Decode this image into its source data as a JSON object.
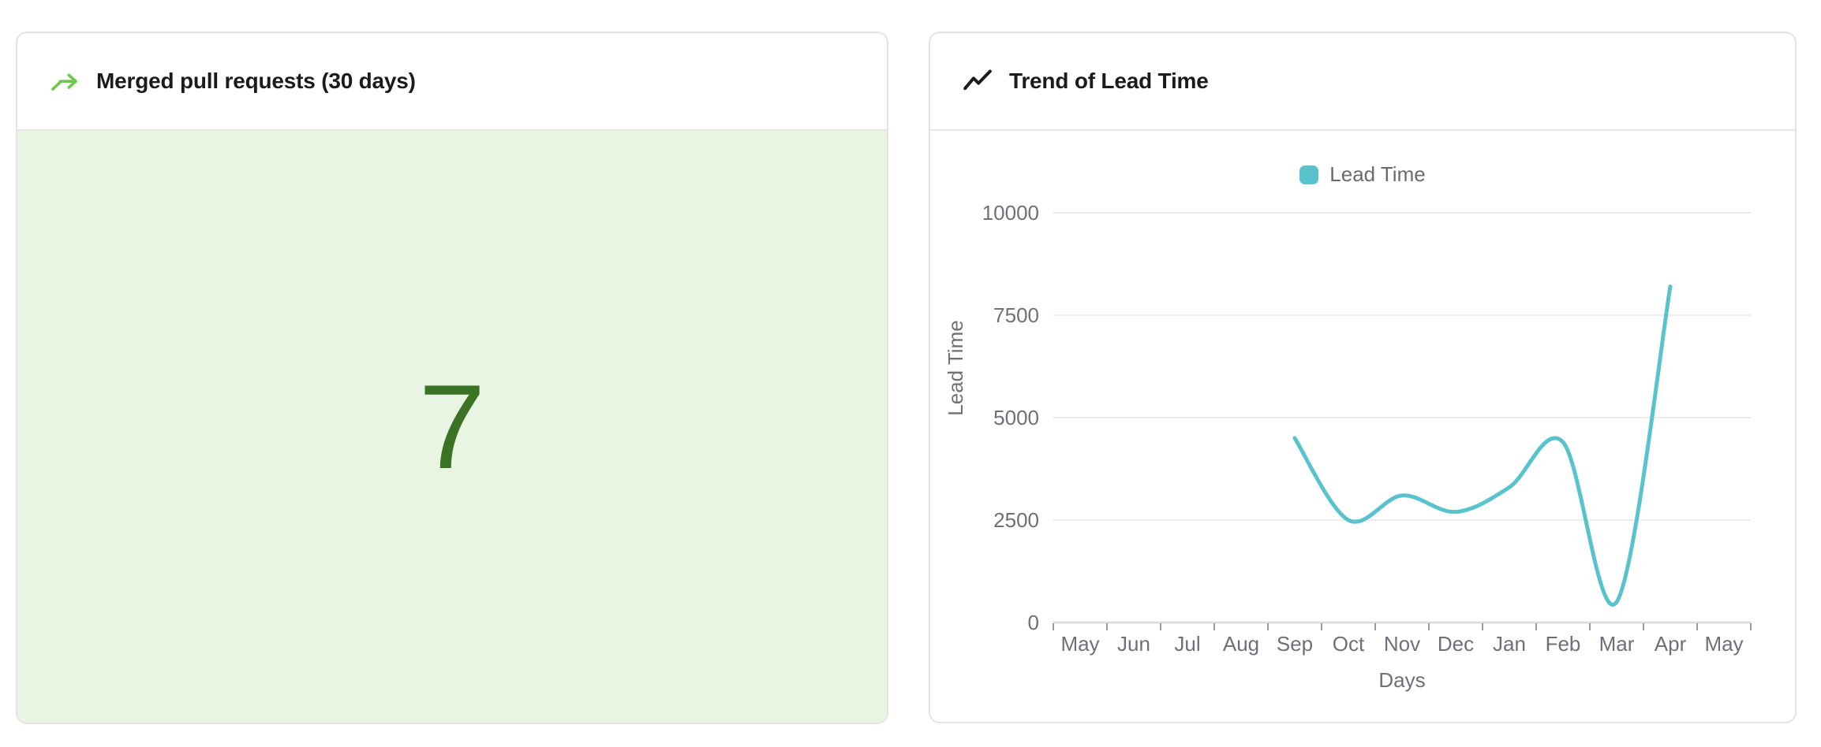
{
  "left_card": {
    "title": "Merged pull requests (30 days)",
    "value": "7",
    "icon": "merge-arrow-icon",
    "icon_color": "#6ec850",
    "value_color": "#3a7323",
    "body_bg": "#e8f5e3"
  },
  "right_card": {
    "title": "Trend of Lead Time",
    "icon": "trend-line-icon",
    "icon_color": "#1b1b1f"
  },
  "chart_data": {
    "type": "line",
    "title": "Trend of Lead Time",
    "categories": [
      "May",
      "Jun",
      "Jul",
      "Aug",
      "Sep",
      "Oct",
      "Nov",
      "Dec",
      "Jan",
      "Feb",
      "Mar",
      "Apr",
      "May"
    ],
    "series": [
      {
        "name": "Lead Time",
        "color": "#58c3cd",
        "values": [
          null,
          null,
          null,
          null,
          4500,
          2500,
          3100,
          2700,
          3300,
          4400,
          500,
          8200,
          null
        ]
      }
    ],
    "xlabel": "Days",
    "ylabel": "Lead Time",
    "ylim": [
      0,
      10000
    ],
    "yticks": [
      0,
      2500,
      5000,
      7500,
      10000
    ],
    "legend_position": "top-center",
    "grid": true,
    "smooth": true,
    "style": {
      "grid_color": "#ececec",
      "axis_line_color": "#dcdcdc",
      "tick_color": "#999999",
      "label_color": "#6e7079"
    }
  }
}
